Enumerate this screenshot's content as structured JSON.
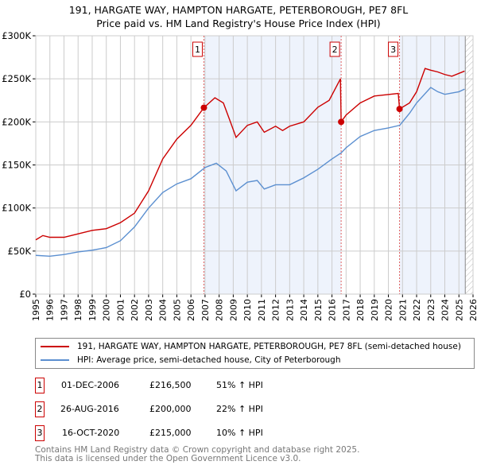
{
  "title_line1": "191, HARGATE WAY, HAMPTON HARGATE, PETERBOROUGH, PE7 8FL",
  "title_line2": "Price paid vs. HM Land Registry's House Price Index (HPI)",
  "colors": {
    "price": "#cc0000",
    "hpi": "#5b8fd0",
    "shade": "#eef3fc",
    "grid": "#cccccc"
  },
  "chart_data": {
    "type": "line",
    "xlim": [
      1995,
      2026
    ],
    "ylim": [
      0,
      300000
    ],
    "x_ticks": [
      "1995",
      "1996",
      "1997",
      "1998",
      "1999",
      "2000",
      "2001",
      "2002",
      "2003",
      "2004",
      "2005",
      "2006",
      "2007",
      "2008",
      "2009",
      "2010",
      "2011",
      "2012",
      "2013",
      "2014",
      "2015",
      "2016",
      "2017",
      "2018",
      "2019",
      "2020",
      "2021",
      "2022",
      "2023",
      "2024",
      "2025",
      "2026"
    ],
    "y_ticks": [
      {
        "v": 0,
        "label": "£0"
      },
      {
        "v": 50000,
        "label": "£50K"
      },
      {
        "v": 100000,
        "label": "£100K"
      },
      {
        "v": 150000,
        "label": "£150K"
      },
      {
        "v": 200000,
        "label": "£200K"
      },
      {
        "v": 250000,
        "label": "£250K"
      },
      {
        "v": 300000,
        "label": "£300K"
      }
    ],
    "shaded_ranges": [
      [
        2006.92,
        2016.65
      ],
      [
        2020.79,
        2025.45
      ]
    ],
    "future_from": 2025.45,
    "series": [
      {
        "name": "191, HARGATE WAY, HAMPTON HARGATE, PETERBOROUGH, PE7 8FL (semi-detached house)",
        "color": "#cc0000",
        "points": [
          [
            1995,
            63000
          ],
          [
            1995.5,
            68000
          ],
          [
            1996,
            66000
          ],
          [
            1997,
            66000
          ],
          [
            1998,
            70000
          ],
          [
            1999,
            74000
          ],
          [
            2000,
            76000
          ],
          [
            2001,
            83000
          ],
          [
            2002,
            94000
          ],
          [
            2003,
            120000
          ],
          [
            2004,
            157000
          ],
          [
            2005,
            180000
          ],
          [
            2006,
            196000
          ],
          [
            2006.92,
            216500
          ],
          [
            2007.7,
            228000
          ],
          [
            2008.3,
            222000
          ],
          [
            2008.8,
            200000
          ],
          [
            2009.2,
            182000
          ],
          [
            2010,
            196000
          ],
          [
            2010.7,
            200000
          ],
          [
            2011.2,
            188000
          ],
          [
            2012,
            195000
          ],
          [
            2012.5,
            190000
          ],
          [
            2013,
            195000
          ],
          [
            2014,
            200000
          ],
          [
            2015,
            217000
          ],
          [
            2015.8,
            225000
          ],
          [
            2016.6,
            250000
          ],
          [
            2016.65,
            200000
          ],
          [
            2017,
            208000
          ],
          [
            2018,
            222000
          ],
          [
            2019,
            230000
          ],
          [
            2020.7,
            233000
          ],
          [
            2020.79,
            215000
          ],
          [
            2021.5,
            222000
          ],
          [
            2022,
            235000
          ],
          [
            2022.6,
            262000
          ],
          [
            2023,
            260000
          ],
          [
            2023.5,
            258000
          ],
          [
            2024,
            255000
          ],
          [
            2024.5,
            253000
          ],
          [
            2025.4,
            259000
          ]
        ]
      },
      {
        "name": "HPI: Average price, semi-detached house, City of Peterborough",
        "color": "#5b8fd0",
        "points": [
          [
            1995,
            45000
          ],
          [
            1996,
            44000
          ],
          [
            1997,
            46000
          ],
          [
            1998,
            49000
          ],
          [
            1999,
            51000
          ],
          [
            2000,
            54000
          ],
          [
            2001,
            62000
          ],
          [
            2002,
            78000
          ],
          [
            2003,
            100000
          ],
          [
            2004,
            118000
          ],
          [
            2005,
            128000
          ],
          [
            2006,
            134000
          ],
          [
            2007,
            147000
          ],
          [
            2007.8,
            152000
          ],
          [
            2008.5,
            143000
          ],
          [
            2009.2,
            120000
          ],
          [
            2010,
            130000
          ],
          [
            2010.7,
            132000
          ],
          [
            2011.2,
            122000
          ],
          [
            2012,
            127000
          ],
          [
            2013,
            127000
          ],
          [
            2014,
            135000
          ],
          [
            2015,
            145000
          ],
          [
            2016,
            157000
          ],
          [
            2016.65,
            164000
          ],
          [
            2017,
            170000
          ],
          [
            2018,
            183000
          ],
          [
            2019,
            190000
          ],
          [
            2020,
            193000
          ],
          [
            2020.8,
            196000
          ],
          [
            2021.5,
            210000
          ],
          [
            2022,
            222000
          ],
          [
            2023,
            240000
          ],
          [
            2023.5,
            235000
          ],
          [
            2024,
            232000
          ],
          [
            2025,
            235000
          ],
          [
            2025.4,
            238000
          ]
        ]
      }
    ],
    "sales": [
      {
        "id": "1",
        "x": 2006.92,
        "y": 216500,
        "date": "01-DEC-2006",
        "price": "£216,500",
        "hpi": "51% ↑ HPI"
      },
      {
        "id": "2",
        "x": 2016.65,
        "y": 200000,
        "date": "26-AUG-2016",
        "price": "£200,000",
        "hpi": "22% ↑ HPI"
      },
      {
        "id": "3",
        "x": 2020.79,
        "y": 215000,
        "date": "16-OCT-2020",
        "price": "£215,000",
        "hpi": "10% ↑ HPI"
      }
    ]
  },
  "legend": {
    "price": "191, HARGATE WAY, HAMPTON HARGATE, PETERBOROUGH, PE7 8FL (semi-detached house)",
    "hpi": "HPI: Average price, semi-detached house, City of Peterborough"
  },
  "footer": {
    "line1": "Contains HM Land Registry data © Crown copyright and database right 2025.",
    "line2": "This data is licensed under the Open Government Licence v3.0."
  }
}
